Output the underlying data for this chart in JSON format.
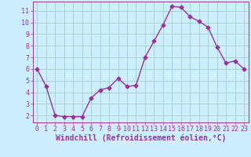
{
  "x": [
    0,
    1,
    2,
    3,
    4,
    5,
    6,
    7,
    8,
    9,
    10,
    11,
    12,
    13,
    14,
    15,
    16,
    17,
    18,
    19,
    20,
    21,
    22,
    23
  ],
  "y": [
    6.0,
    4.5,
    2.0,
    1.9,
    1.9,
    1.9,
    3.5,
    4.2,
    4.4,
    5.2,
    4.5,
    4.6,
    7.0,
    8.4,
    9.8,
    11.4,
    11.3,
    10.5,
    10.1,
    9.6,
    7.9,
    6.5,
    6.7,
    6.0
  ],
  "line_color": "#993399",
  "marker": "D",
  "marker_size": 2.5,
  "line_width": 1.0,
  "bg_color": "#cceeff",
  "grid_color": "#99ccbb",
  "xlabel": "Windchill (Refroidissement éolien,°C)",
  "xlim": [
    -0.5,
    23.5
  ],
  "ylim": [
    1.4,
    11.8
  ],
  "yticks": [
    2,
    3,
    4,
    5,
    6,
    7,
    8,
    9,
    10,
    11
  ],
  "xticks": [
    0,
    1,
    2,
    3,
    4,
    5,
    6,
    7,
    8,
    9,
    10,
    11,
    12,
    13,
    14,
    15,
    16,
    17,
    18,
    19,
    20,
    21,
    22,
    23
  ],
  "tick_color": "#993399",
  "label_color": "#993399",
  "font_size_xlabel": 7,
  "font_size_ticks": 6
}
